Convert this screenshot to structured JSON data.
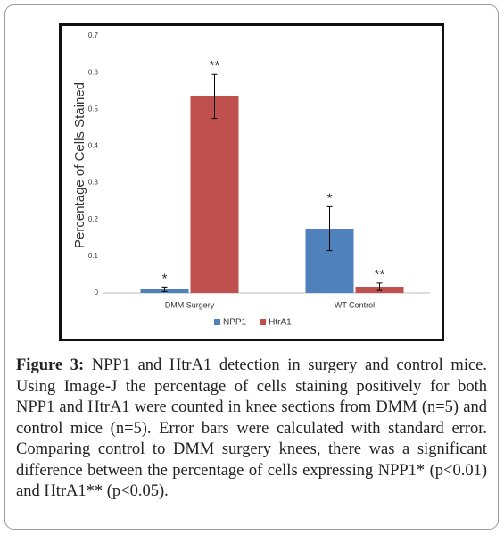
{
  "chart_data": {
    "type": "bar",
    "y_label": "Percentage of Cells Stained",
    "categories": [
      "DMM Surgery",
      "WT Control"
    ],
    "series": [
      {
        "name": "NPP1",
        "color": "#4f81bd",
        "values": [
          0.01,
          0.175
        ],
        "errors": [
          0.006,
          0.06
        ],
        "annotations": [
          "*",
          "*"
        ]
      },
      {
        "name": "HtrA1",
        "color": "#c0504d",
        "values": [
          0.535,
          0.017
        ],
        "errors": [
          0.06,
          0.01
        ],
        "annotations": [
          "**",
          "**"
        ]
      }
    ],
    "ylim": [
      0,
      0.7
    ],
    "yticks": [
      0,
      0.1,
      0.2,
      0.3,
      0.4,
      0.5,
      0.6,
      0.7
    ],
    "legend": "bottom",
    "caption": {
      "label": "Figure 3:",
      "text": "NPP1 and HtrA1 detection in surgery and control mice. Using Image-J the percentage of cells staining positively for both NPP1 and HtrA1 were counted in knee sections from DMM (n=5) and control mice (n=5). Error bars were calculated with standard error. Comparing control to DMM surgery knees, there was a significant difference between the percentage of cells expressing NPP1* (p<0.01) and HtrA1** (p<0.05)."
    }
  }
}
